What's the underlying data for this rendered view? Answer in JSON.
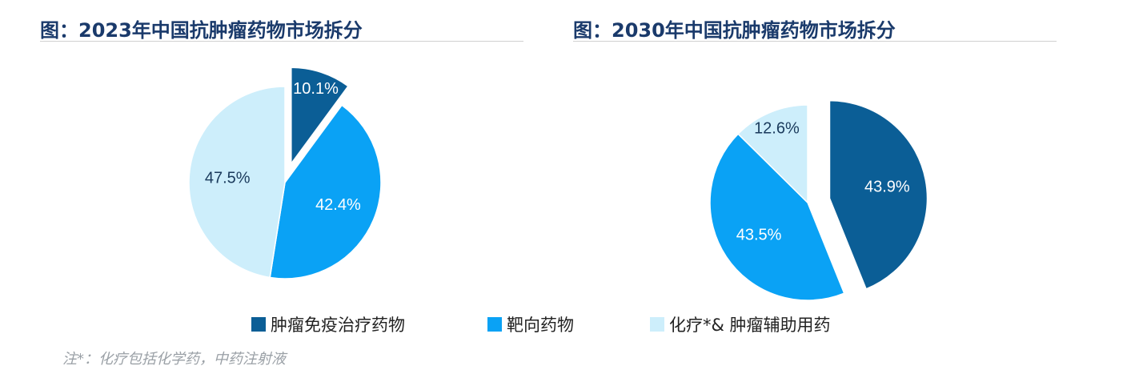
{
  "chart_data": [
    {
      "type": "pie",
      "title": "图：2023年中国抗肿瘤药物市场拆分",
      "slices": [
        {
          "label": "肿瘤免疫治疗药物",
          "value": 10.1,
          "display": "10.1%",
          "color": "#0b5e96",
          "exploded": true
        },
        {
          "label": "靶向药物",
          "value": 42.4,
          "display": "42.4%",
          "color": "#0aa2f5",
          "exploded": false
        },
        {
          "label": "化疗*& 肿瘤辅助用药",
          "value": 47.5,
          "display": "47.5%",
          "color": "#cdeefb",
          "exploded": false
        }
      ]
    },
    {
      "type": "pie",
      "title": "图：2030年中国抗肿瘤药物市场拆分",
      "slices": [
        {
          "label": "肿瘤免疫治疗药物",
          "value": 43.9,
          "display": "43.9%",
          "color": "#0b5e96",
          "exploded": true
        },
        {
          "label": "靶向药物",
          "value": 43.5,
          "display": "43.5%",
          "color": "#0aa2f5",
          "exploded": false
        },
        {
          "label": "化疗*& 肿瘤辅助用药",
          "value": 12.6,
          "display": "12.6%",
          "color": "#cdeefb",
          "exploded": false
        }
      ]
    }
  ],
  "legend": [
    {
      "label": "肿瘤免疫治疗药物",
      "color": "#0b5e96"
    },
    {
      "label": "靶向药物",
      "color": "#0aa2f5"
    },
    {
      "label": "化疗*& 肿瘤辅助用药",
      "color": "#cdeefb"
    }
  ],
  "note": "注*：化疗包括化学药，中药注射液"
}
